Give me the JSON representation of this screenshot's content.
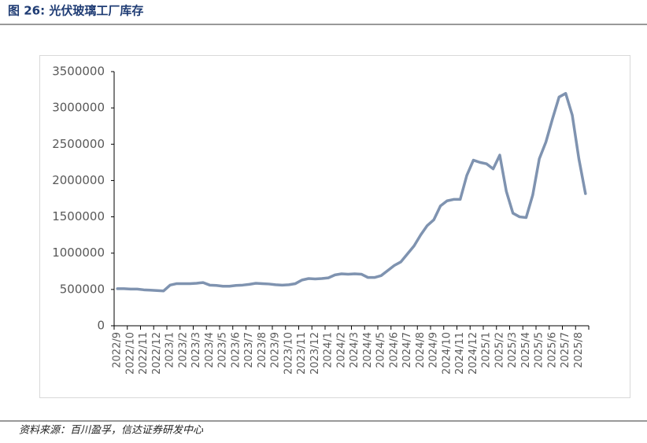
{
  "header": {
    "title": "图 26:  光伏玻璃工厂库存"
  },
  "chart_data": {
    "type": "line",
    "categories": [
      "2022/9",
      null,
      "2022/10",
      null,
      "2022/11",
      null,
      "2022/12",
      null,
      "2023/1",
      null,
      "2023/2",
      null,
      "2023/3",
      null,
      "2023/4",
      null,
      "2023/5",
      null,
      "2023/6",
      null,
      "2023/7",
      null,
      "2023/8",
      null,
      "2023/9",
      null,
      "2023/10",
      null,
      "2023/11",
      null,
      "2023/12",
      null,
      "2024/1",
      null,
      "2024/2",
      null,
      "2024/3",
      null,
      "2024/4",
      null,
      "2024/5",
      null,
      "2024/6",
      null,
      "2024/7",
      null,
      "2024/8",
      null,
      "2024/9",
      null,
      "2024/10",
      null,
      "2024/11",
      null,
      "2024/12",
      null,
      "2025/1",
      null,
      "2025/2",
      null,
      "2025/3",
      null,
      "2025/4",
      null,
      "2025/5",
      null,
      "2025/6",
      null,
      "2025/7",
      null,
      "2025/8",
      null
    ],
    "series": [
      {
        "color": "#7f93b0",
        "values": [
          510000,
          510000,
          505000,
          505000,
          495000,
          490000,
          485000,
          480000,
          560000,
          580000,
          580000,
          580000,
          585000,
          595000,
          560000,
          555000,
          545000,
          545000,
          555000,
          560000,
          570000,
          585000,
          580000,
          575000,
          565000,
          560000,
          565000,
          580000,
          630000,
          650000,
          645000,
          650000,
          660000,
          700000,
          715000,
          710000,
          715000,
          710000,
          665000,
          665000,
          690000,
          760000,
          830000,
          880000,
          990000,
          1100000,
          1250000,
          1380000,
          1460000,
          1650000,
          1720000,
          1740000,
          1740000,
          2070000,
          2280000,
          2250000,
          2230000,
          2160000,
          2350000,
          1850000,
          1550000,
          1500000,
          1490000,
          1800000,
          2300000,
          2530000,
          2850000,
          3150000,
          3200000,
          2900000,
          2300000,
          1820000
        ]
      }
    ],
    "ylim": [
      0,
      3500000
    ],
    "yticks": [
      0,
      500000,
      1000000,
      1500000,
      2000000,
      2500000,
      3000000,
      3500000
    ]
  },
  "footer": {
    "source": "资料来源：百川盈孚，信达证券研发中心"
  }
}
